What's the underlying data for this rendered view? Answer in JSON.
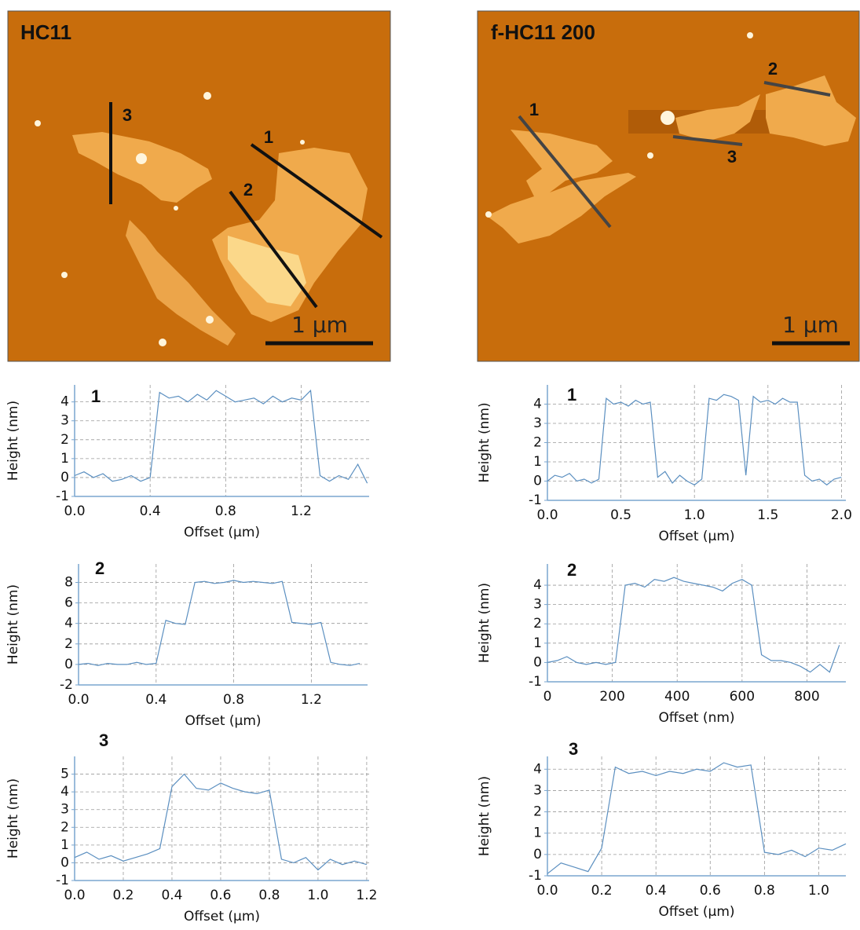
{
  "images": [
    {
      "title": "HC11",
      "line_labels": [
        "1",
        "2",
        "3"
      ],
      "scale_bar": "1 µm"
    },
    {
      "title": "f-HC11 200",
      "line_labels": [
        "1",
        "2",
        "3"
      ],
      "scale_bar": "1 µm"
    }
  ],
  "chart_data": [
    {
      "type": "line",
      "title": "1",
      "x_label": "Offset (µm)",
      "y_label": "Height (nm)",
      "color": "#5b8fc0",
      "grid": true,
      "x": [
        0,
        0.05,
        0.1,
        0.15,
        0.2,
        0.25,
        0.3,
        0.35,
        0.4,
        0.45,
        0.5,
        0.55,
        0.6,
        0.65,
        0.7,
        0.75,
        0.8,
        0.85,
        0.9,
        0.95,
        1.0,
        1.05,
        1.1,
        1.15,
        1.2,
        1.25,
        1.3,
        1.35,
        1.4,
        1.45,
        1.5,
        1.55
      ],
      "values": [
        0.1,
        0.3,
        0.0,
        0.2,
        -0.2,
        -0.1,
        0.1,
        -0.2,
        0.0,
        4.5,
        4.2,
        4.3,
        4.0,
        4.4,
        4.1,
        4.6,
        4.3,
        4.0,
        4.1,
        4.2,
        3.9,
        4.3,
        4.0,
        4.2,
        4.1,
        4.6,
        0.1,
        -0.2,
        0.1,
        -0.1,
        0.7,
        -0.3
      ],
      "xlim": [
        0,
        1.56
      ],
      "ylim": [
        -1,
        4.9
      ],
      "xticks": [
        {
          "value": 0,
          "label": "0.0"
        },
        0.4,
        0.8,
        1.2
      ],
      "yticks": [
        -1,
        0,
        1,
        2,
        3,
        4
      ]
    },
    {
      "type": "line",
      "title": "2",
      "x_label": "Offset (µm)",
      "y_label": "Height (nm)",
      "color": "#5b8fc0",
      "grid": true,
      "x": [
        0,
        0.05,
        0.1,
        0.15,
        0.2,
        0.25,
        0.3,
        0.35,
        0.4,
        0.45,
        0.5,
        0.55,
        0.6,
        0.65,
        0.7,
        0.75,
        0.8,
        0.85,
        0.9,
        0.95,
        1.0,
        1.05,
        1.1,
        1.15,
        1.2,
        1.25,
        1.3,
        1.35,
        1.4,
        1.45
      ],
      "values": [
        0,
        0.1,
        -0.1,
        0.1,
        0,
        0,
        0.2,
        0,
        0.1,
        4.3,
        4.0,
        3.9,
        8.0,
        8.1,
        7.9,
        8.0,
        8.2,
        8.0,
        8.1,
        8.0,
        7.9,
        8.1,
        4.1,
        4.0,
        3.9,
        4.1,
        0.2,
        0,
        -0.1,
        0.1
      ],
      "xlim": [
        0,
        1.49
      ],
      "ylim": [
        -2,
        9.8
      ],
      "xticks": [
        {
          "value": 0,
          "label": "0.0"
        },
        0.4,
        0.8,
        1.2
      ],
      "yticks": [
        -2,
        0,
        2,
        4,
        6,
        8
      ]
    },
    {
      "type": "line",
      "title": "3",
      "x_label": "Offset (µm)",
      "y_label": "Height (nm)",
      "color": "#5b8fc0",
      "grid": true,
      "x": [
        0,
        0.05,
        0.1,
        0.15,
        0.2,
        0.25,
        0.3,
        0.35,
        0.4,
        0.45,
        0.5,
        0.55,
        0.6,
        0.65,
        0.7,
        0.75,
        0.8,
        0.85,
        0.9,
        0.95,
        1.0,
        1.05,
        1.1,
        1.15,
        1.2
      ],
      "values": [
        0.3,
        0.6,
        0.2,
        0.4,
        0.1,
        0.3,
        0.5,
        0.8,
        4.3,
        5.0,
        4.2,
        4.1,
        4.5,
        4.2,
        4.0,
        3.9,
        4.1,
        0.2,
        0.0,
        0.3,
        -0.4,
        0.2,
        -0.1,
        0.1,
        -0.1
      ],
      "xlim": [
        0,
        1.21
      ],
      "ylim": [
        -1,
        6.0
      ],
      "xticks": [
        {
          "value": 0,
          "label": "0.0"
        },
        0.2,
        0.4,
        0.6,
        0.8,
        {
          "value": 1,
          "label": "1.0"
        },
        1.2
      ],
      "yticks": [
        -1,
        0,
        1,
        2,
        3,
        4,
        5
      ]
    },
    {
      "type": "line",
      "title": "1",
      "x_label": "Offset (µm)",
      "y_label": "Height (nm)",
      "color": "#5b8fc0",
      "grid": true,
      "x": [
        0,
        0.05,
        0.1,
        0.15,
        0.2,
        0.25,
        0.3,
        0.35,
        0.4,
        0.45,
        0.5,
        0.55,
        0.6,
        0.65,
        0.7,
        0.75,
        0.8,
        0.85,
        0.9,
        0.95,
        1.0,
        1.05,
        1.1,
        1.15,
        1.2,
        1.25,
        1.3,
        1.35,
        1.4,
        1.45,
        1.5,
        1.55,
        1.6,
        1.65,
        1.7,
        1.75,
        1.8,
        1.85,
        1.9,
        1.95,
        2.0
      ],
      "values": [
        0,
        0.3,
        0.2,
        0.4,
        0,
        0.1,
        -0.1,
        0.1,
        4.3,
        4.0,
        4.1,
        3.9,
        4.2,
        4.0,
        4.1,
        0.2,
        0.5,
        -0.1,
        0.3,
        0,
        -0.2,
        0.1,
        4.3,
        4.2,
        4.5,
        4.4,
        4.2,
        0.3,
        4.4,
        4.1,
        4.2,
        4.0,
        4.3,
        4.1,
        4.1,
        0.3,
        0,
        0.1,
        -0.2,
        0.1,
        0.2
      ],
      "xlim": [
        0,
        2.03
      ],
      "ylim": [
        -1,
        5.0
      ],
      "xticks": [
        {
          "value": 0,
          "label": "0.0"
        },
        0.5,
        {
          "value": 1,
          "label": "1.0"
        },
        1.5,
        {
          "value": 2,
          "label": "2.0"
        }
      ],
      "yticks": [
        -1,
        0,
        1,
        2,
        3,
        4
      ]
    },
    {
      "type": "line",
      "title": "2",
      "x_label": "Offset (nm)",
      "y_label": "Height (nm)",
      "color": "#5b8fc0",
      "grid": true,
      "x": [
        0,
        30,
        60,
        90,
        120,
        150,
        180,
        210,
        240,
        270,
        300,
        330,
        360,
        390,
        420,
        450,
        480,
        510,
        540,
        570,
        600,
        630,
        660,
        690,
        720,
        750,
        780,
        810,
        840,
        870,
        900
      ],
      "values": [
        0,
        0.1,
        0.3,
        0,
        -0.1,
        0,
        -0.1,
        0,
        4.0,
        4.1,
        3.9,
        4.3,
        4.2,
        4.4,
        4.2,
        4.1,
        4.0,
        3.9,
        3.7,
        4.1,
        4.3,
        4.0,
        0.4,
        0.1,
        0.1,
        0,
        -0.2,
        -0.5,
        -0.1,
        -0.5,
        0.9
      ],
      "xlim": [
        0,
        920
      ],
      "ylim": [
        -1,
        5.1
      ],
      "xticks": [
        0,
        200,
        400,
        600,
        800
      ],
      "yticks": [
        -1,
        0,
        1,
        2,
        3,
        4
      ]
    },
    {
      "type": "line",
      "title": "3",
      "x_label": "Offset (µm)",
      "y_label": "Height (nm)",
      "color": "#5b8fc0",
      "grid": true,
      "x": [
        0,
        0.05,
        0.1,
        0.15,
        0.2,
        0.25,
        0.3,
        0.35,
        0.4,
        0.45,
        0.5,
        0.55,
        0.6,
        0.65,
        0.7,
        0.75,
        0.8,
        0.85,
        0.9,
        0.95,
        1.0,
        1.05,
        1.1
      ],
      "values": [
        -0.9,
        -0.4,
        -0.6,
        -0.8,
        0.3,
        4.1,
        3.8,
        3.9,
        3.7,
        3.9,
        3.8,
        4.0,
        3.9,
        4.3,
        4.1,
        4.2,
        0.1,
        0.0,
        0.2,
        -0.1,
        0.3,
        0.2,
        0.5
      ],
      "xlim": [
        0,
        1.1
      ],
      "ylim": [
        -1,
        4.6
      ],
      "xticks": [
        {
          "value": 0,
          "label": "0.0"
        },
        0.2,
        0.4,
        0.6,
        0.8,
        {
          "value": 1,
          "label": "1.0"
        }
      ],
      "yticks": [
        -1,
        0,
        1,
        2,
        3,
        4
      ]
    }
  ]
}
